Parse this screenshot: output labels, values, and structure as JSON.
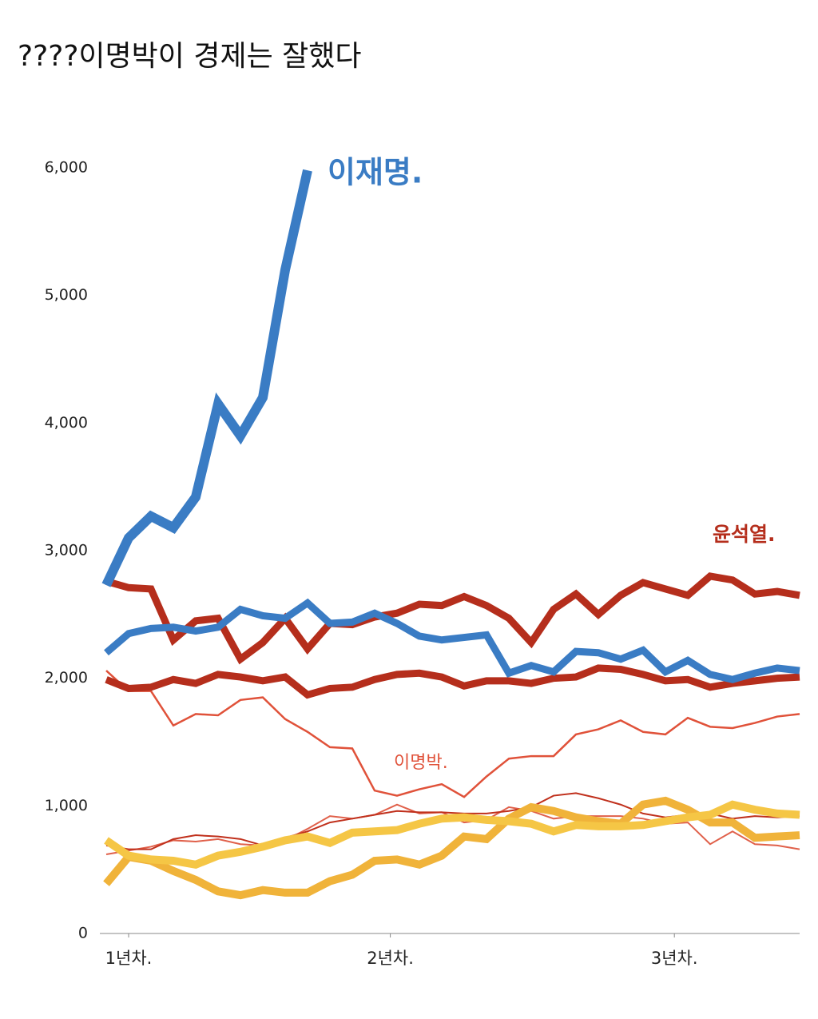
{
  "title": "????이명박이 경제는 잘했다",
  "chart_data": {
    "type": "line",
    "x": [
      0,
      1,
      2,
      3,
      4,
      5,
      6,
      7,
      8,
      9,
      10,
      11,
      12,
      13,
      14,
      15,
      16,
      17,
      18,
      19,
      20,
      21,
      22,
      23,
      24,
      25,
      26,
      27,
      28,
      29,
      30,
      31
    ],
    "xlim": [
      0,
      31
    ],
    "xticks": [
      {
        "value": 1,
        "label": "1년차."
      },
      {
        "value": 12.7,
        "label": "2년차."
      },
      {
        "value": 25.4,
        "label": "3년차."
      }
    ],
    "ylim": [
      0,
      6000
    ],
    "yticks": [
      0,
      {
        "value": 1000,
        "label": "1,000"
      },
      {
        "value": 2000,
        "label": "2,000"
      },
      {
        "value": 3000,
        "label": "3,000"
      },
      {
        "value": 4000,
        "label": "4,000"
      },
      {
        "value": 5000,
        "label": "5,000"
      },
      {
        "value": 6000,
        "label": "6,000"
      }
    ],
    "series": [
      {
        "color": "#e0604a",
        "values": [
          620,
          650,
          680,
          730,
          720,
          740,
          700,
          690,
          730,
          820,
          920,
          900,
          930,
          1010,
          940,
          950,
          870,
          890,
          990,
          960,
          900,
          920,
          920,
          920,
          900,
          860,
          870,
          700,
          800,
          700,
          690,
          660
        ]
      },
      {
        "color": "#c0301c",
        "values": [
          690,
          660,
          660,
          740,
          770,
          760,
          740,
          690,
          750,
          800,
          870,
          900,
          930,
          960,
          950,
          950,
          940,
          940,
          960,
          990,
          1080,
          1100,
          1060,
          1010,
          940,
          910,
          930,
          940,
          900,
          920,
          910,
          920
        ]
      },
      {
        "name": "이명박.",
        "color": "#e0523a",
        "values": [
          2060,
          1900,
          1900,
          1630,
          1720,
          1710,
          1830,
          1850,
          1680,
          1580,
          1460,
          1450,
          1120,
          1080,
          1130,
          1170,
          1070,
          1230,
          1370,
          1390,
          1390,
          1560,
          1600,
          1670,
          1580,
          1560,
          1690,
          1620,
          1610,
          1650,
          1700,
          1720
        ]
      },
      {
        "color": "#f0b33a",
        "values": [
          390,
          600,
          570,
          490,
          420,
          330,
          300,
          340,
          320,
          320,
          410,
          460,
          570,
          580,
          540,
          610,
          760,
          740,
          900,
          990,
          960,
          910,
          880,
          860,
          1010,
          1040,
          970,
          870,
          870,
          750,
          760,
          770
        ]
      },
      {
        "color": "#f5c645",
        "values": [
          730,
          610,
          580,
          570,
          540,
          610,
          640,
          680,
          730,
          760,
          710,
          790,
          800,
          810,
          860,
          900,
          910,
          890,
          880,
          860,
          800,
          850,
          840,
          840,
          850,
          880,
          910,
          930,
          1010,
          970,
          940,
          930
        ]
      },
      {
        "color": "#b52e1c",
        "values": [
          1990,
          1920,
          1930,
          1990,
          1960,
          2030,
          2010,
          1980,
          2010,
          1870,
          1920,
          1930,
          1990,
          2030,
          2040,
          2010,
          1940,
          1980,
          1980,
          1960,
          2000,
          2010,
          2080,
          2070,
          2030,
          1980,
          1990,
          1930,
          1960,
          1980,
          2000,
          2010
        ]
      },
      {
        "name": "윤석열.",
        "color": "#b52e1c",
        "values": [
          2760,
          2710,
          2700,
          2300,
          2450,
          2470,
          2150,
          2280,
          2470,
          2230,
          2430,
          2420,
          2480,
          2510,
          2580,
          2570,
          2640,
          2570,
          2470,
          2280,
          2540,
          2660,
          2500,
          2650,
          2750,
          2700,
          2650,
          2800,
          2770,
          2660,
          2680,
          2650
        ]
      },
      {
        "color": "#3a7cc4",
        "values": [
          2200,
          2350,
          2390,
          2400,
          2370,
          2400,
          2540,
          2490,
          2470,
          2590,
          2430,
          2440,
          2510,
          2430,
          2330,
          2300,
          2320,
          2340,
          2040,
          2100,
          2050,
          2210,
          2200,
          2150,
          2220,
          2050,
          2140,
          2030,
          1990,
          2040,
          2080,
          2060
        ]
      },
      {
        "name": "이재명.",
        "color": "#3a7cc4",
        "values": [
          2730,
          3100,
          3270,
          3180,
          3420,
          4150,
          3900,
          4200,
          5200,
          5980,
          null,
          null,
          null,
          null,
          null,
          null,
          null,
          null,
          null,
          null,
          null,
          null,
          null,
          null,
          null,
          null,
          null,
          null,
          null,
          null,
          null,
          null
        ]
      }
    ]
  }
}
